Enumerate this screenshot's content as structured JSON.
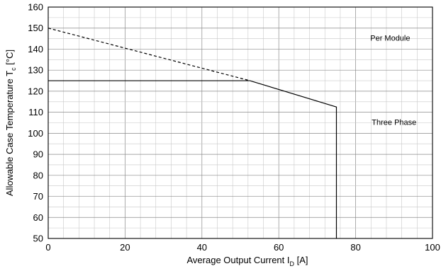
{
  "chart_data": {
    "type": "line",
    "xlabel": "Average Output Current I",
    "xlabel_sub": "D",
    "xlabel_unit": " [A]",
    "ylabel": "Allowable Case Temperature T",
    "ylabel_sub": "c",
    "ylabel_unit": " [°C]",
    "xlim": [
      0,
      100
    ],
    "ylim": [
      50,
      160
    ],
    "x_ticks": [
      0,
      20,
      40,
      60,
      80,
      100
    ],
    "y_ticks": [
      50,
      60,
      70,
      80,
      90,
      100,
      110,
      120,
      130,
      140,
      150,
      160
    ],
    "x_minor_step": 4,
    "y_minor_step": 5,
    "grid": true,
    "annotations": [
      {
        "text": "Per Module",
        "x": 89,
        "y": 144
      },
      {
        "text": "Three Phase",
        "x": 90,
        "y": 104
      }
    ],
    "series": [
      {
        "style": "dashed",
        "x": [
          0,
          52.5
        ],
        "y": [
          150,
          125
        ]
      },
      {
        "style": "solid",
        "x": [
          0,
          52.5,
          75,
          75
        ],
        "y": [
          125,
          125,
          112.5,
          50
        ]
      }
    ]
  }
}
